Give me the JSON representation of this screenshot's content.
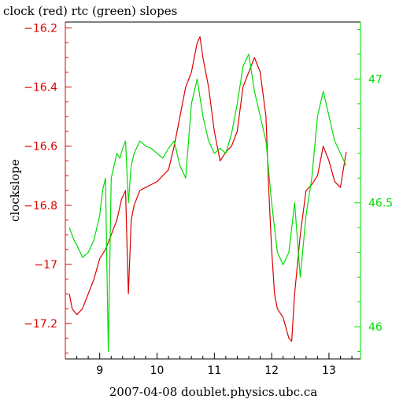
{
  "chart_data": {
    "type": "line",
    "title": "clock (red) rtc (green) slopes",
    "xlabel": "2007-04-08 doublet.physics.ubc.ca",
    "ylabel": "clockslope",
    "xlim": [
      8.4,
      13.55
    ],
    "ylim_left": [
      -17.32,
      -16.18
    ],
    "ylim_right": [
      45.87,
      47.23
    ],
    "x_ticks": [
      9,
      10,
      11,
      12,
      13
    ],
    "y_ticks_left": [
      -16.2,
      -16.4,
      -16.6,
      -16.8,
      -17,
      -17.2
    ],
    "y_ticks_right": [
      46,
      46.5,
      47
    ],
    "x_tick_labels": [
      "9",
      "10",
      "11",
      "12",
      "13"
    ],
    "y_tick_labels_left": [
      "−16.2",
      "−16.4",
      "−16.6",
      "−16.8",
      "−17",
      "−17.2"
    ],
    "y_tick_labels_right": [
      "46",
      "46.5",
      "47"
    ],
    "series": [
      {
        "axis": "left",
        "color": "#dd0000",
        "x": [
          8.47,
          8.52,
          8.6,
          8.7,
          8.8,
          8.9,
          9.0,
          9.1,
          9.2,
          9.3,
          9.38,
          9.45,
          9.5,
          9.55,
          9.6,
          9.7,
          9.8,
          9.9,
          10.0,
          10.1,
          10.2,
          10.3,
          10.4,
          10.5,
          10.6,
          10.7,
          10.75,
          10.8,
          10.9,
          11.0,
          11.1,
          11.2,
          11.3,
          11.4,
          11.5,
          11.6,
          11.7,
          11.8,
          11.9,
          11.95,
          12.0,
          12.05,
          12.1,
          12.2,
          12.3,
          12.35,
          12.4,
          12.5,
          12.6,
          12.7,
          12.8,
          12.9,
          13.0,
          13.1,
          13.2,
          13.3
        ],
        "y": [
          -17.1,
          -17.15,
          -17.17,
          -17.15,
          -17.1,
          -17.05,
          -16.98,
          -16.95,
          -16.9,
          -16.85,
          -16.78,
          -16.75,
          -17.1,
          -16.85,
          -16.8,
          -16.75,
          -16.74,
          -16.73,
          -16.72,
          -16.7,
          -16.68,
          -16.6,
          -16.5,
          -16.4,
          -16.35,
          -16.25,
          -16.23,
          -16.3,
          -16.4,
          -16.55,
          -16.65,
          -16.62,
          -16.6,
          -16.55,
          -16.4,
          -16.35,
          -16.3,
          -16.35,
          -16.5,
          -16.75,
          -16.95,
          -17.1,
          -17.15,
          -17.18,
          -17.25,
          -17.26,
          -17.1,
          -16.9,
          -16.75,
          -16.73,
          -16.7,
          -16.6,
          -16.65,
          -16.72,
          -16.74,
          -16.62
        ]
      },
      {
        "axis": "right",
        "color": "#00dd00",
        "x": [
          8.47,
          8.55,
          8.6,
          8.7,
          8.8,
          8.9,
          9.0,
          9.05,
          9.1,
          9.15,
          9.2,
          9.25,
          9.3,
          9.35,
          9.4,
          9.45,
          9.5,
          9.55,
          9.6,
          9.7,
          9.8,
          9.9,
          10.0,
          10.1,
          10.2,
          10.3,
          10.4,
          10.5,
          10.6,
          10.7,
          10.8,
          10.9,
          11.0,
          11.1,
          11.2,
          11.3,
          11.4,
          11.5,
          11.6,
          11.7,
          11.8,
          11.9,
          12.0,
          12.1,
          12.2,
          12.3,
          12.4,
          12.5,
          12.6,
          12.7,
          12.8,
          12.9,
          13.0,
          13.1,
          13.2,
          13.3
        ],
        "y": [
          46.4,
          46.35,
          46.33,
          46.28,
          46.3,
          46.35,
          46.45,
          46.55,
          46.6,
          45.9,
          46.6,
          46.65,
          46.7,
          46.68,
          46.72,
          46.75,
          46.5,
          46.65,
          46.7,
          46.75,
          46.73,
          46.72,
          46.7,
          46.68,
          46.72,
          46.75,
          46.65,
          46.6,
          46.9,
          47.0,
          46.85,
          46.75,
          46.7,
          46.72,
          46.7,
          46.78,
          46.9,
          47.05,
          47.1,
          46.95,
          46.85,
          46.75,
          46.5,
          46.3,
          46.25,
          46.3,
          46.5,
          46.2,
          46.45,
          46.6,
          46.85,
          46.95,
          46.85,
          46.75,
          46.7,
          46.65
        ]
      }
    ]
  }
}
